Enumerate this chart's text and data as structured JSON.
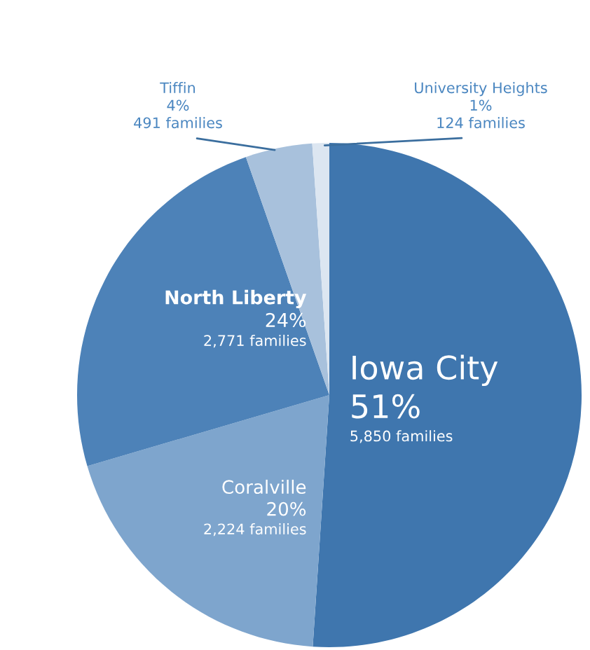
{
  "chart_data": {
    "type": "pie",
    "categories": [
      "Iowa City",
      "Coralville",
      "North Liberty",
      "Tiffin",
      "University Heights"
    ],
    "values": [
      5850,
      2224,
      2771,
      491,
      124
    ],
    "colors": [
      "#3f76ae",
      "#7ea5cd",
      "#4d82b8",
      "#a8c1dc",
      "#dce6f1"
    ],
    "value_labels": [
      "51%\n5,850 families",
      "20%\n2,224 families",
      "24%\n2,771 families",
      "4%\n491 families",
      "1%\n124 families"
    ],
    "legend": false
  }
}
